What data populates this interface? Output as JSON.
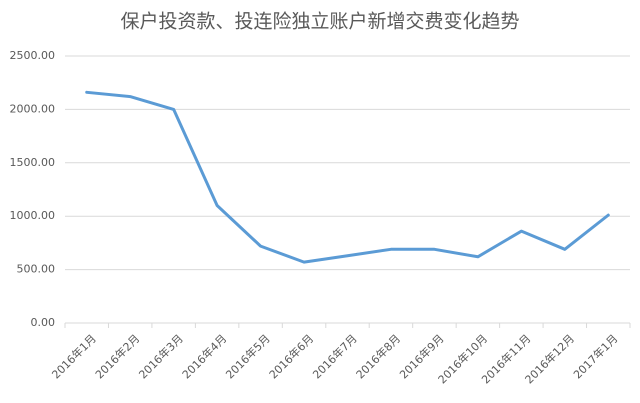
{
  "chart_data": {
    "type": "line",
    "title": "保户投资款、投连险独立账户新增交费变化趋势",
    "categories": [
      "2016年1月",
      "2016年2月",
      "2016年3月",
      "2016年4月",
      "2016年5月",
      "2016年6月",
      "2016年7月",
      "2016年8月",
      "2016年9月",
      "2016年10月",
      "2016年11月",
      "2016年12月",
      "2017年1月"
    ],
    "series": [
      {
        "color": "#5b9bd5",
        "values": [
          2160,
          2120,
          2000,
          1100,
          720,
          570,
          630,
          690,
          690,
          620,
          860,
          690,
          1010
        ]
      }
    ],
    "ylim": [
      0,
      2500
    ],
    "yticks": [
      {
        "value": 0,
        "label": "0.00"
      },
      {
        "value": 500,
        "label": "500.00"
      },
      {
        "value": 1000,
        "label": "1000.00"
      },
      {
        "value": 1500,
        "label": "1500.00"
      },
      {
        "value": 2000,
        "label": "2000.00"
      },
      {
        "value": 2500,
        "label": "2500.00"
      }
    ],
    "grid": true
  }
}
